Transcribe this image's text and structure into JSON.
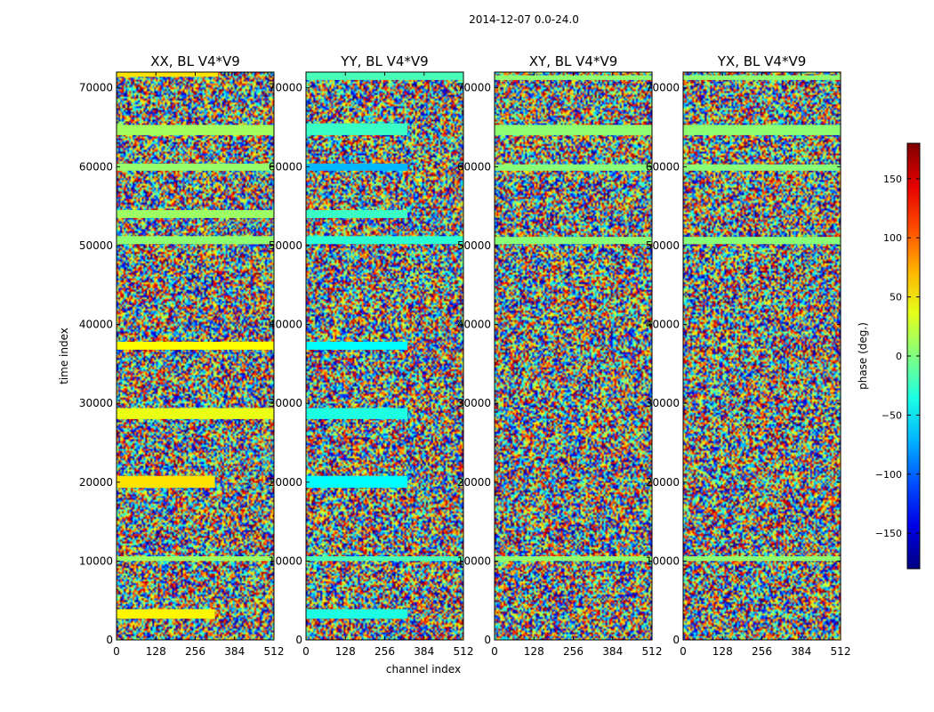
{
  "chart_data": {
    "type": "heatmap",
    "title": "2014-12-07 0.0-24.0",
    "xlabel": "channel index",
    "ylabel": "time index",
    "xlim": [
      0,
      512
    ],
    "ylim": [
      0,
      72000
    ],
    "x_ticks": [
      0,
      128,
      256,
      384,
      512
    ],
    "y_ticks": [
      0,
      10000,
      20000,
      30000,
      40000,
      50000,
      60000,
      70000
    ],
    "colorbar": {
      "label": "phase (deg.)",
      "range": [
        -180,
        180
      ],
      "ticks": [
        -150,
        -100,
        -50,
        0,
        50,
        100,
        150
      ],
      "tick_labels": [
        "−150",
        "−100",
        "−50",
        "0",
        "50",
        "100",
        "150"
      ],
      "colormap": "jet"
    },
    "panels": [
      {
        "title": "XX, BL V4*V9",
        "flat_bands": [
          {
            "t0": 71400,
            "t1": 72000,
            "phase": 55,
            "ch_max": 330
          },
          {
            "t0": 64000,
            "t1": 65300,
            "phase": 12,
            "ch_max": 512
          },
          {
            "t0": 59500,
            "t1": 60400,
            "phase": 8,
            "ch_max": 512
          },
          {
            "t0": 53500,
            "t1": 54500,
            "phase": 10,
            "ch_max": 512
          },
          {
            "t0": 50200,
            "t1": 51200,
            "phase": 5,
            "ch_max": 512
          },
          {
            "t0": 36800,
            "t1": 37800,
            "phase": 45,
            "ch_max": 512
          },
          {
            "t0": 28000,
            "t1": 29400,
            "phase": 38,
            "ch_max": 512
          },
          {
            "t0": 19300,
            "t1": 20800,
            "phase": 55,
            "ch_max": 320
          },
          {
            "t0": 10000,
            "t1": 10600,
            "phase": 10,
            "ch_max": 512
          },
          {
            "t0": 2700,
            "t1": 3900,
            "phase": 48,
            "ch_max": 320
          }
        ]
      },
      {
        "title": "YY, BL V4*V9",
        "flat_bands": [
          {
            "t0": 71000,
            "t1": 72000,
            "phase": -20,
            "ch_max": 512
          },
          {
            "t0": 64000,
            "t1": 65500,
            "phase": -25,
            "ch_max": 330
          },
          {
            "t0": 59500,
            "t1": 60400,
            "phase": -70,
            "ch_max": 330
          },
          {
            "t0": 53500,
            "t1": 54500,
            "phase": -25,
            "ch_max": 330
          },
          {
            "t0": 50200,
            "t1": 51200,
            "phase": -30,
            "ch_max": 512
          },
          {
            "t0": 36800,
            "t1": 37800,
            "phase": -45,
            "ch_max": 330
          },
          {
            "t0": 28000,
            "t1": 29400,
            "phase": -35,
            "ch_max": 330
          },
          {
            "t0": 19300,
            "t1": 20800,
            "phase": -45,
            "ch_max": 330
          },
          {
            "t0": 10000,
            "t1": 10600,
            "phase": -20,
            "ch_max": 512
          },
          {
            "t0": 2700,
            "t1": 3900,
            "phase": -35,
            "ch_max": 330
          }
        ]
      },
      {
        "title": "XY, BL V4*V9",
        "flat_bands": [
          {
            "t0": 71000,
            "t1": 71600,
            "phase": 5,
            "ch_max": 512
          },
          {
            "t0": 64000,
            "t1": 65300,
            "phase": 5,
            "ch_max": 512
          },
          {
            "t0": 59500,
            "t1": 60300,
            "phase": 3,
            "ch_max": 512
          },
          {
            "t0": 50200,
            "t1": 51100,
            "phase": 3,
            "ch_max": 512
          },
          {
            "t0": 10000,
            "t1": 10600,
            "phase": 5,
            "ch_max": 512
          }
        ]
      },
      {
        "title": "YX, BL V4*V9",
        "flat_bands": [
          {
            "t0": 71000,
            "t1": 71600,
            "phase": 5,
            "ch_max": 512
          },
          {
            "t0": 64000,
            "t1": 65300,
            "phase": 5,
            "ch_max": 512
          },
          {
            "t0": 59500,
            "t1": 60300,
            "phase": 3,
            "ch_max": 512
          },
          {
            "t0": 50200,
            "t1": 51100,
            "phase": 3,
            "ch_max": 512
          },
          {
            "t0": 10000,
            "t1": 10600,
            "phase": 5,
            "ch_max": 512
          }
        ]
      }
    ]
  }
}
